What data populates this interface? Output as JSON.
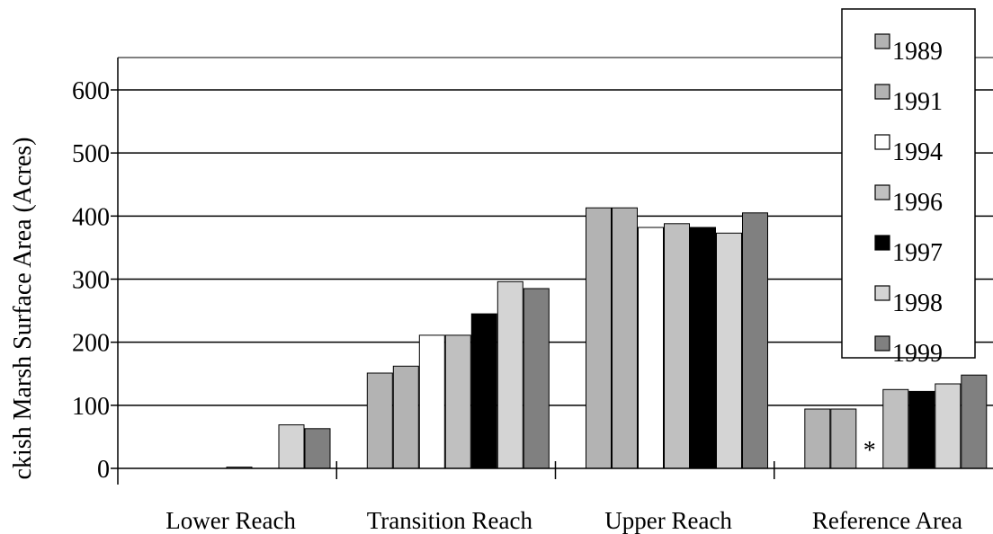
{
  "chart_data": {
    "type": "bar",
    "ylabel": "ckish Marsh Surface Area (Acres)",
    "ylim": [
      0,
      600
    ],
    "yticks": [
      "0",
      "100",
      "200",
      "300",
      "400",
      "500",
      "600"
    ],
    "grid": true,
    "legend_position": "top-right",
    "categories": [
      "Lower Reach",
      "Transition Reach",
      "Upper Reach",
      "Reference Area"
    ],
    "series": [
      {
        "name": "1989",
        "color": "#b3b3b3",
        "values": [
          0,
          151,
          413,
          94
        ]
      },
      {
        "name": "1991",
        "color": "#b3b3b3",
        "values": [
          0,
          162,
          413,
          94
        ]
      },
      {
        "name": "1994",
        "color": "#ffffff",
        "values": [
          0,
          211,
          382,
          null
        ]
      },
      {
        "name": "1996",
        "color": "#c0c0c0",
        "values": [
          2,
          211,
          388,
          125
        ]
      },
      {
        "name": "1997",
        "color": "#000000",
        "values": [
          0,
          245,
          382,
          122
        ]
      },
      {
        "name": "1998",
        "color": "#d4d4d4",
        "values": [
          69,
          296,
          373,
          134
        ]
      },
      {
        "name": "1999",
        "color": "#808080",
        "values": [
          63,
          285,
          405,
          148
        ]
      }
    ],
    "annotations": [
      {
        "text": "*",
        "category": "Reference Area",
        "series": "1994"
      }
    ]
  }
}
